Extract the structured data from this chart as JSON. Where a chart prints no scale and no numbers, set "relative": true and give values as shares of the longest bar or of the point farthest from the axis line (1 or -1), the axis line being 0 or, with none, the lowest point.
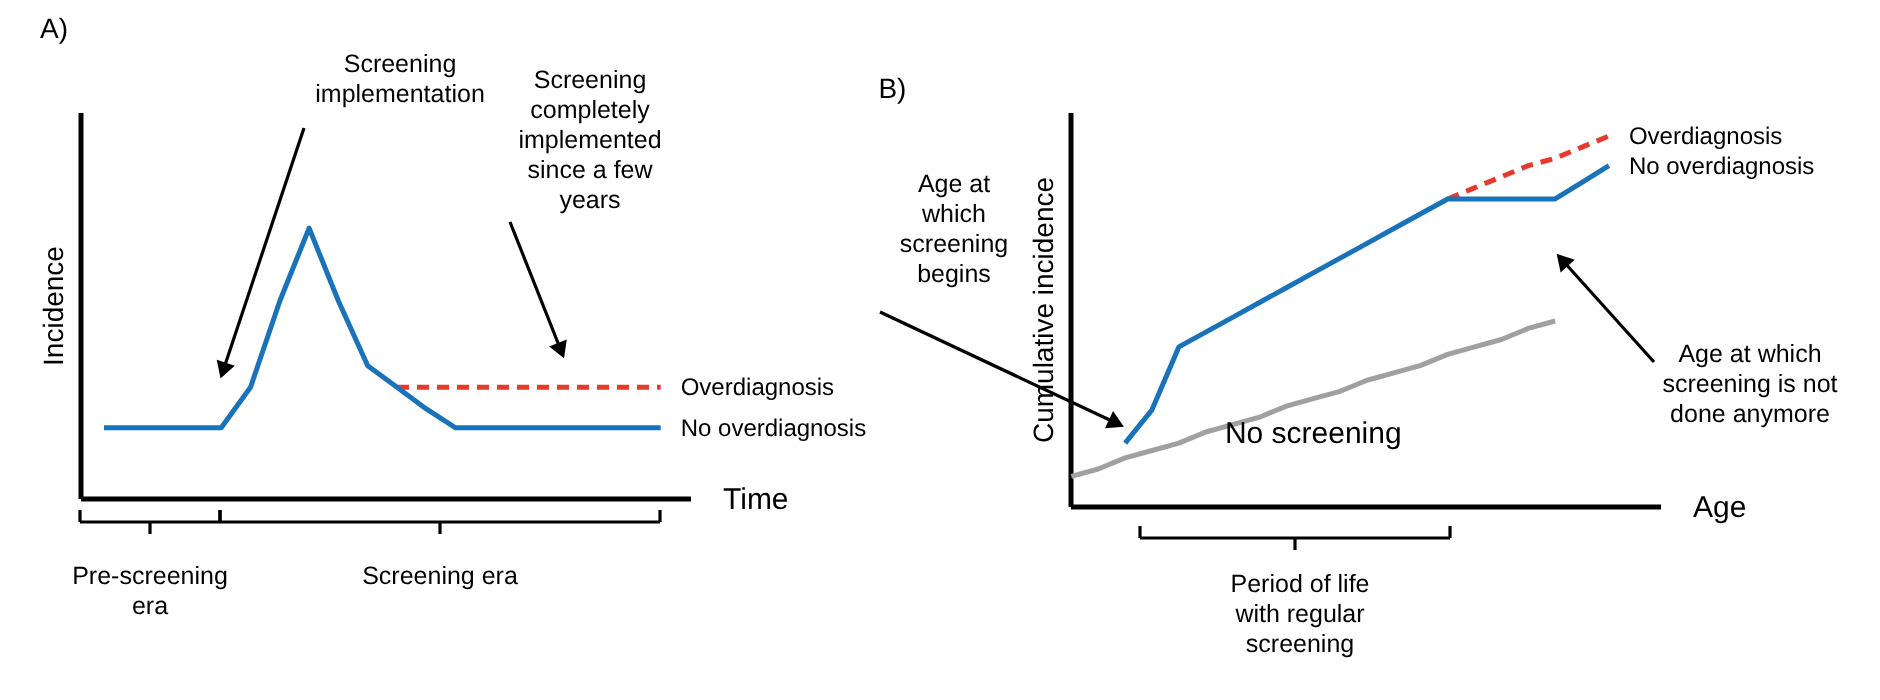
{
  "chart_data": [
    {
      "type": "line",
      "title": "A)",
      "xlabel": "Time",
      "ylabel": "Incidence",
      "relative": true,
      "categories": [
        null,
        null,
        null,
        null,
        null,
        null,
        null,
        null,
        null,
        null,
        null,
        null,
        null,
        null,
        null,
        null,
        null,
        null,
        null,
        null
      ],
      "series": [
        {
          "name": "Overdiagnosis",
          "color": "#e53b2f",
          "line_style": "dashed",
          "values": [
            null,
            null,
            null,
            null,
            null,
            null,
            null,
            null,
            null,
            null,
            0.41,
            0.41,
            0.41,
            0.41,
            0.41,
            0.41,
            0.41,
            0.41,
            0.41,
            0.41
          ]
        },
        {
          "name": "No overdiagnosis",
          "color": "#1a72b8",
          "line_style": "solid",
          "values": [
            0.26,
            0.26,
            0.26,
            0.26,
            0.26,
            0.41,
            0.73,
            1,
            0.73,
            0.49,
            0.41,
            0.33,
            0.26,
            0.26,
            0.26,
            0.26,
            0.26,
            0.26,
            0.26,
            0.26
          ]
        }
      ],
      "annotations": [
        "Screening\nimplementation",
        "Screening\ncompletely\nimplemented\nsince a few\nyears",
        "Pre-screening\nera",
        "Screening era"
      ]
    },
    {
      "type": "line",
      "title": "B)",
      "xlabel": "Age",
      "ylabel": "Cumulative incidence",
      "relative": true,
      "categories": [
        null,
        null,
        null,
        null,
        null,
        null,
        null,
        null,
        null,
        null,
        null,
        null,
        null,
        null,
        null,
        null,
        null,
        null,
        null,
        null,
        null
      ],
      "series": [
        {
          "name": "No screening",
          "color": "#a0a0a0",
          "line_style": "solid",
          "values": [
            0.08,
            0.1,
            0.13,
            0.15,
            0.17,
            0.2,
            0.22,
            0.24,
            0.27,
            0.29,
            0.31,
            0.34,
            0.36,
            0.38,
            0.41,
            0.43,
            0.45,
            0.48,
            0.5,
            null,
            null
          ]
        },
        {
          "name": "Overdiagnosis",
          "color": "#e53b2f",
          "line_style": "dashed",
          "values": [
            null,
            null,
            null,
            null,
            null,
            null,
            null,
            null,
            null,
            null,
            null,
            null,
            null,
            null,
            0.83,
            0.86,
            0.89,
            0.92,
            0.94,
            0.97,
            1
          ]
        },
        {
          "name": "No overdiagnosis",
          "color": "#1a72b8",
          "line_style": "solid",
          "values": [
            null,
            null,
            0.17,
            0.26,
            0.43,
            0.47,
            0.51,
            0.55,
            0.59,
            0.63,
            0.67,
            0.71,
            0.75,
            0.79,
            0.83,
            0.83,
            0.83,
            0.83,
            0.83,
            0.875,
            0.92
          ]
        }
      ],
      "annotations": [
        "Age at\nwhich\nscreening\nbegins",
        "Age at which\nscreening is not\ndone anymore",
        "Period of life\nwith regular\nscreening"
      ]
    }
  ]
}
